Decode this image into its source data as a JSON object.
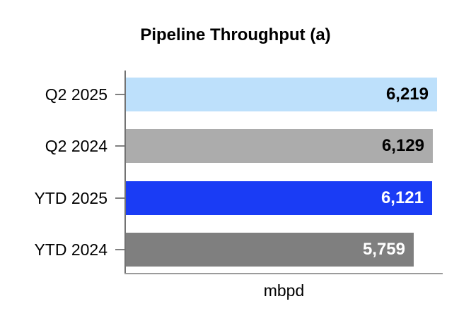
{
  "chart_data": {
    "type": "bar",
    "orientation": "horizontal",
    "title": "Pipeline Throughput (a)",
    "xlabel": "mbpd",
    "categories": [
      "Q2 2025",
      "Q2 2024",
      "YTD 2025",
      "YTD 2024"
    ],
    "values": [
      6219,
      6129,
      6121,
      5759
    ],
    "value_labels": [
      "6,219",
      "6,129",
      "6,121",
      "5,759"
    ],
    "bar_colors": [
      "#BDE0FB",
      "#ACACAC",
      "#1A3CF5",
      "#7F7F7F"
    ],
    "value_label_colors": [
      "#000000",
      "#000000",
      "#FFFFFF",
      "#FFFFFF"
    ],
    "xlim": [
      0,
      6400
    ],
    "grid": false,
    "legend": "none",
    "axis_color": "#808080",
    "value_labels_position": "inside-end"
  }
}
